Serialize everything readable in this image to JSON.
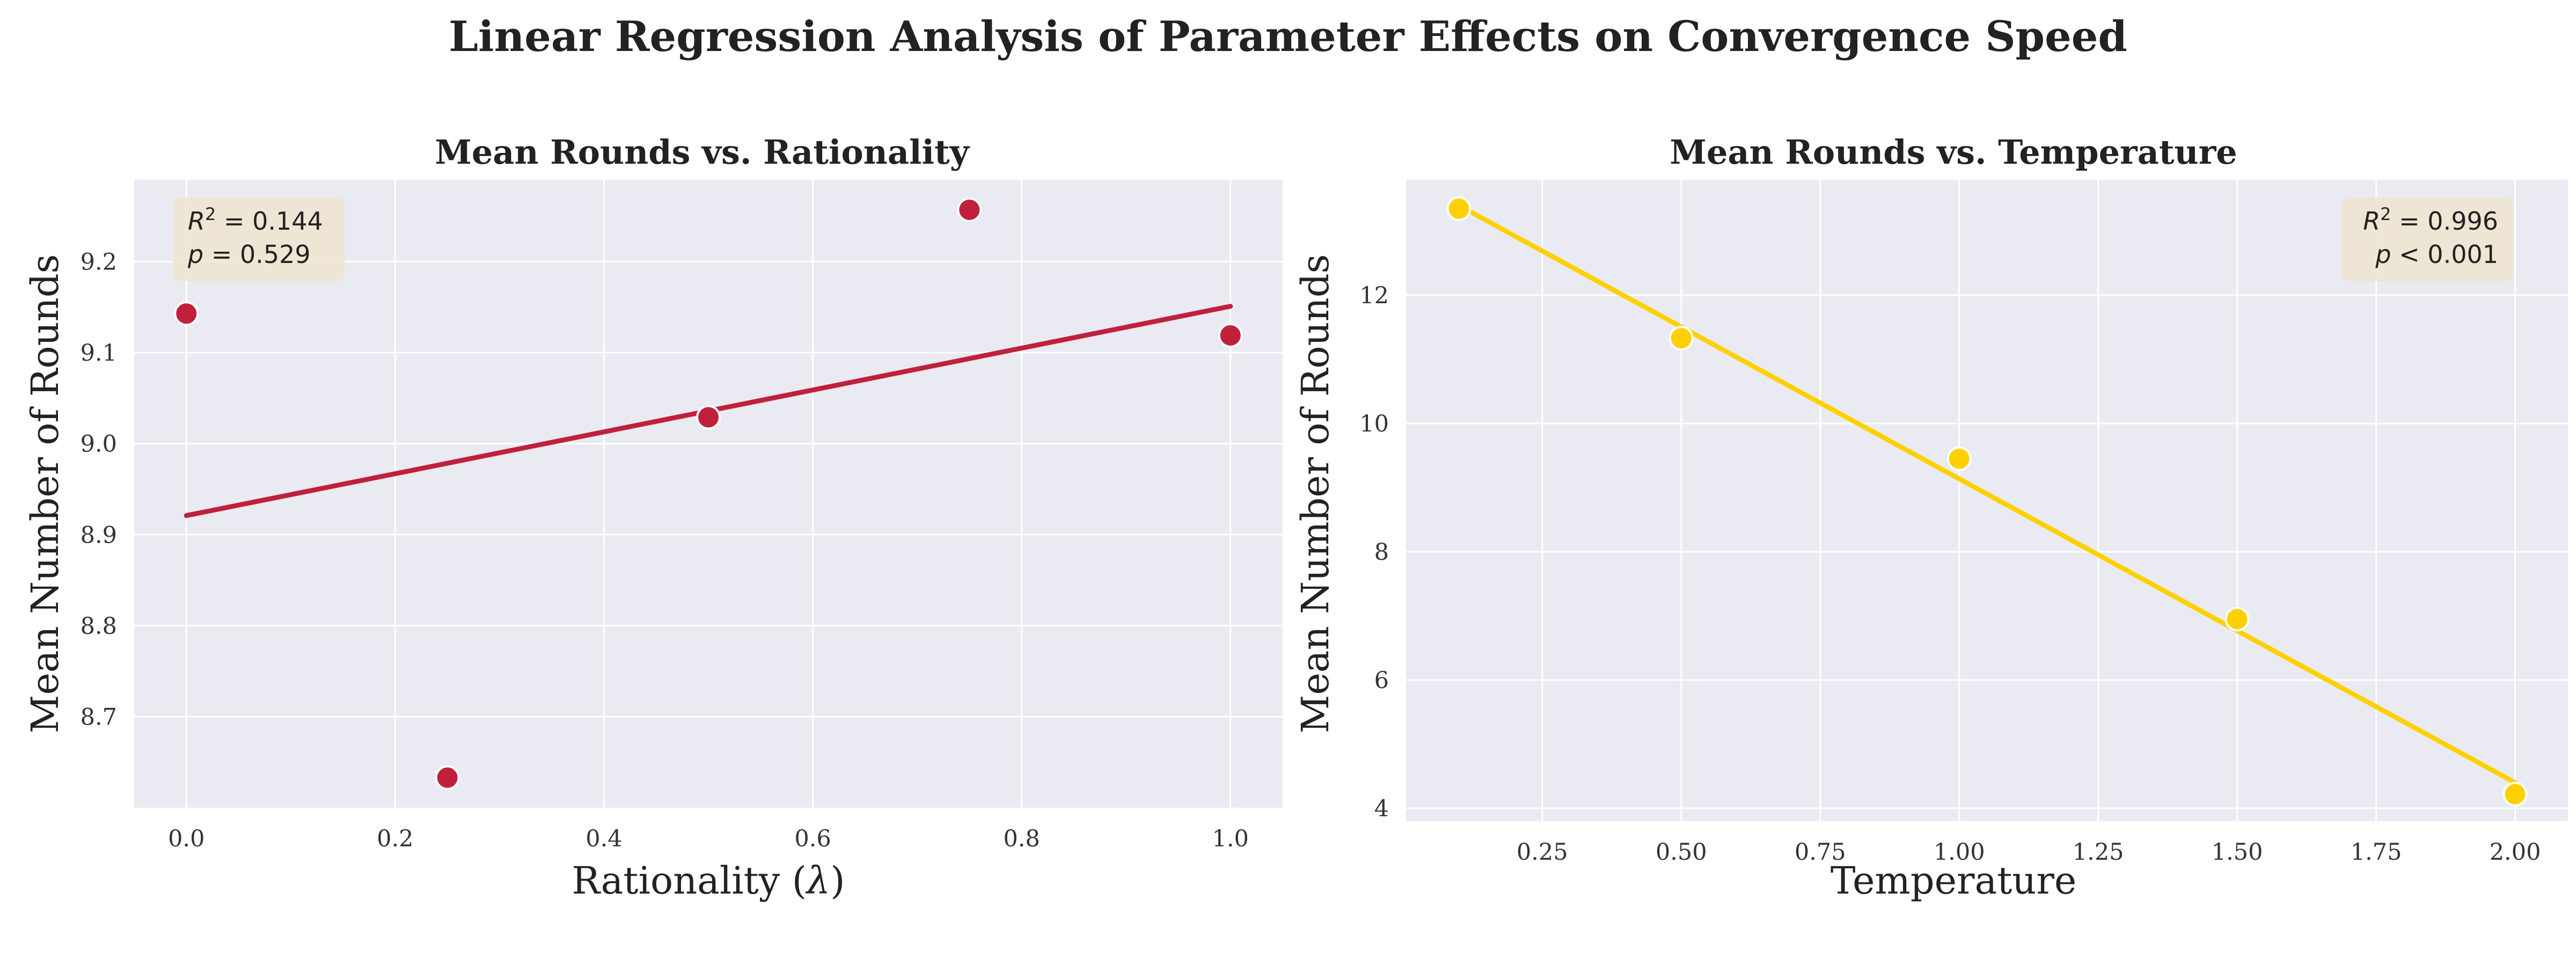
{
  "figure": {
    "suptitle": "Linear Regression Analysis of Parameter Effects on Convergence Speed"
  },
  "chart_data": [
    {
      "type": "scatter",
      "title": "Mean Rounds vs. Rationality",
      "xlabel_text": "Rationality (",
      "xlabel_symbol": "λ",
      "xlabel_suffix": ")",
      "ylabel": "Mean Number of Rounds",
      "x": [
        0.0,
        0.25,
        0.5,
        0.75,
        1.0
      ],
      "y": [
        9.143,
        8.633,
        9.029,
        9.257,
        9.119
      ],
      "fit": {
        "x": [
          0.0,
          1.0
        ],
        "y": [
          8.921,
          9.151
        ]
      },
      "xlim": [
        -0.05,
        1.05
      ],
      "ylim": [
        8.6,
        9.29
      ],
      "xticks": [
        0.0,
        0.2,
        0.4,
        0.6,
        0.8,
        1.0
      ],
      "xtick_labels": [
        "0.0",
        "0.2",
        "0.4",
        "0.6",
        "0.8",
        "1.0"
      ],
      "yticks": [
        8.7,
        8.8,
        8.9,
        9.0,
        9.1,
        9.2
      ],
      "ytick_labels": [
        "8.7",
        "8.8",
        "8.9",
        "9.0",
        "9.1",
        "9.2"
      ],
      "color": "#C0203C",
      "stats": {
        "r2_label": "R",
        "r2_exp": "2",
        "r2_value": " = 0.144",
        "p_label": "p",
        "p_value": " = 0.529",
        "placement": "top-left"
      },
      "grid": true
    },
    {
      "type": "scatter",
      "title": "Mean Rounds vs. Temperature",
      "xlabel": "Temperature",
      "ylabel": "Mean Number of Rounds",
      "x": [
        0.1,
        0.5,
        1.0,
        1.5,
        2.0
      ],
      "y": [
        13.35,
        11.33,
        9.45,
        6.95,
        4.22
      ],
      "fit": {
        "x": [
          0.1,
          2.0
        ],
        "y": [
          13.4,
          4.4
        ]
      },
      "xlim": [
        0.005,
        2.095
      ],
      "ylim": [
        3.8,
        13.8
      ],
      "xticks": [
        0.25,
        0.5,
        0.75,
        1.0,
        1.25,
        1.5,
        1.75,
        2.0
      ],
      "xtick_labels": [
        "0.25",
        "0.50",
        "0.75",
        "1.00",
        "1.25",
        "1.50",
        "1.75",
        "2.00"
      ],
      "yticks": [
        4,
        6,
        8,
        10,
        12
      ],
      "ytick_labels": [
        "4",
        "6",
        "8",
        "10",
        "12"
      ],
      "color": "#FFD000",
      "stats": {
        "r2_label": "R",
        "r2_exp": "2",
        "r2_value": " = 0.996",
        "p_label": "p",
        "p_value": " < 0.001",
        "placement": "top-right"
      },
      "grid": true
    }
  ],
  "colors": {
    "panel_background": "#EAEAF2",
    "grid": "#FFFFFF",
    "stats_box": "#F0E4CF"
  }
}
